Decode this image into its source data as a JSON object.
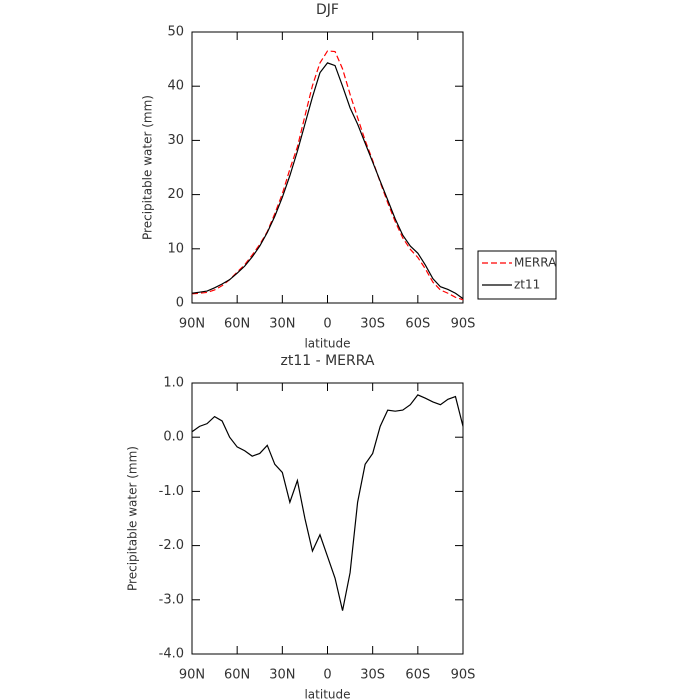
{
  "chart_data": [
    {
      "type": "line",
      "title": "DJF",
      "xlabel": "latitude",
      "ylabel": "Precipitable water (mm)",
      "x": [
        90,
        85,
        80,
        75,
        70,
        65,
        60,
        55,
        50,
        45,
        40,
        35,
        30,
        25,
        20,
        15,
        10,
        5,
        0,
        -5,
        -10,
        -15,
        -20,
        -25,
        -30,
        -35,
        -40,
        -45,
        -50,
        -55,
        -60,
        -65,
        -70,
        -75,
        -80,
        -85,
        -90
      ],
      "series": [
        {
          "name": "MERRA",
          "color": "#ff0000",
          "dash": true,
          "values": [
            1.7,
            1.8,
            1.95,
            2.4,
            3.2,
            4.3,
            5.7,
            7.05,
            8.85,
            10.8,
            13.15,
            16.5,
            20.15,
            24.7,
            28.8,
            34.5,
            40.1,
            44.3,
            46.5,
            46.4,
            43.2,
            38.5,
            34.2,
            30,
            26.3,
            22.3,
            18.5,
            15.0,
            12.0,
            9.9,
            8.4,
            6.3,
            3.85,
            2.4,
            1.8,
            1.05,
            0.6
          ]
        },
        {
          "name": "zt11",
          "color": "#000000",
          "dash": false,
          "values": [
            1.8,
            2.0,
            2.2,
            2.8,
            3.5,
            4.3,
            5.5,
            6.8,
            8.5,
            10.5,
            13,
            16,
            19.5,
            23.5,
            28,
            33,
            38,
            42.5,
            44.3,
            43.8,
            40,
            36,
            33,
            29.5,
            26,
            22.5,
            19,
            15.5,
            12.5,
            10.5,
            9.2,
            7,
            4.5,
            3,
            2.5,
            1.8,
            0.8
          ]
        }
      ],
      "xlim": [
        90,
        -90
      ],
      "xticks": [
        {
          "value": 90,
          "label": "90N"
        },
        {
          "value": 60,
          "label": "60N"
        },
        {
          "value": 30,
          "label": "30N"
        },
        0,
        {
          "value": -30,
          "label": "30S"
        },
        {
          "value": -60,
          "label": "60S"
        },
        {
          "value": -90,
          "label": "90S"
        }
      ],
      "ylim": [
        0,
        50
      ],
      "yticks": [
        0,
        10,
        20,
        30,
        40,
        50
      ],
      "legend": "right"
    },
    {
      "type": "line",
      "title": "zt11 - MERRA",
      "xlabel": "latitude",
      "ylabel": "Precipitable water (mm)",
      "x": [
        90,
        85,
        80,
        75,
        70,
        65,
        60,
        55,
        50,
        45,
        40,
        35,
        30,
        25,
        20,
        15,
        10,
        5,
        0,
        -5,
        -10,
        -15,
        -20,
        -25,
        -30,
        -35,
        -40,
        -45,
        -50,
        -55,
        -60,
        -65,
        -70,
        -75,
        -80,
        -85,
        -90
      ],
      "color": "#000000",
      "values": [
        0.1,
        0.2,
        0.25,
        0.38,
        0.3,
        0.0,
        -0.18,
        -0.25,
        -0.35,
        -0.3,
        -0.15,
        -0.5,
        -0.65,
        -1.2,
        -0.8,
        -1.5,
        -2.1,
        -1.8,
        -2.2,
        -2.6,
        -3.2,
        -2.5,
        -1.2,
        -0.5,
        -0.3,
        0.2,
        0.5,
        0.48,
        0.5,
        0.6,
        0.78,
        0.72,
        0.65,
        0.6,
        0.7,
        0.75,
        0.2
      ],
      "xlim": [
        90,
        -90
      ],
      "xticks": [
        {
          "value": 90,
          "label": "90N"
        },
        {
          "value": 60,
          "label": "60N"
        },
        {
          "value": 30,
          "label": "30N"
        },
        0,
        {
          "value": -30,
          "label": "30S"
        },
        {
          "value": -60,
          "label": "60S"
        },
        {
          "value": -90,
          "label": "90S"
        }
      ],
      "ylim": [
        -4,
        1
      ],
      "yticks": [
        {
          "value": -4,
          "label": "-4.0"
        },
        {
          "value": -3,
          "label": "-3.0"
        },
        {
          "value": -2,
          "label": "-2.0"
        },
        {
          "value": -1,
          "label": "-1.0"
        },
        {
          "value": 0,
          "label": "0.0"
        },
        {
          "value": 1,
          "label": "1.0"
        }
      ]
    }
  ]
}
